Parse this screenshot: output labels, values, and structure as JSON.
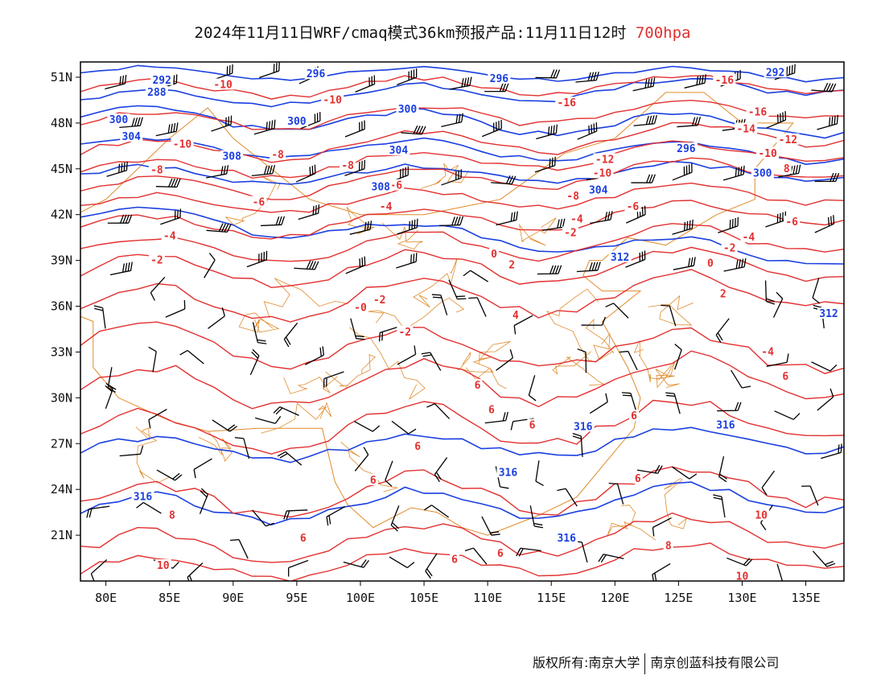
{
  "title": {
    "main": "2024年11月11日WRF/cmaq模式36km预报产品:11月11日12时",
    "level": "700hpa"
  },
  "map": {
    "lon_range": [
      78,
      138
    ],
    "lat_range": [
      18,
      52
    ],
    "x_ticks": [
      "80E",
      "85E",
      "90E",
      "95E",
      "100E",
      "105E",
      "110E",
      "115E",
      "120E",
      "125E",
      "130E",
      "135E"
    ],
    "x_tick_lons": [
      80,
      85,
      90,
      95,
      100,
      105,
      110,
      115,
      120,
      125,
      130,
      135
    ],
    "y_ticks": [
      "51N",
      "48N",
      "45N",
      "42N",
      "39N",
      "36N",
      "33N",
      "30N",
      "27N",
      "24N",
      "21N"
    ],
    "y_tick_lats": [
      51,
      48,
      45,
      42,
      39,
      36,
      33,
      30,
      27,
      24,
      21
    ],
    "colors": {
      "temperature": "#e23030",
      "geopotential": "#1a3fe0",
      "wind": "#000000",
      "boundary": "#e08a2a"
    },
    "temperature_labels": [
      {
        "text": "-10",
        "lon": 89.2,
        "lat": 50.5
      },
      {
        "text": "-10",
        "lon": 97.8,
        "lat": 49.5
      },
      {
        "text": "-10",
        "lon": 86.0,
        "lat": 46.6
      },
      {
        "text": "-8",
        "lon": 93.5,
        "lat": 45.9
      },
      {
        "text": "-8",
        "lon": 84.0,
        "lat": 44.9
      },
      {
        "text": "-8",
        "lon": 99.0,
        "lat": 45.2
      },
      {
        "text": "-6",
        "lon": 102.8,
        "lat": 43.9
      },
      {
        "text": "-6",
        "lon": 92.0,
        "lat": 42.8
      },
      {
        "text": "-4",
        "lon": 85.0,
        "lat": 40.6
      },
      {
        "text": "-4",
        "lon": 102.0,
        "lat": 42.5
      },
      {
        "text": "-2",
        "lon": 84.0,
        "lat": 39.0
      },
      {
        "text": "-2",
        "lon": 101.5,
        "lat": 36.4
      },
      {
        "text": "-2",
        "lon": 103.5,
        "lat": 34.3
      },
      {
        "text": "0",
        "lon": 110.5,
        "lat": 39.4
      },
      {
        "text": "-0",
        "lon": 100.0,
        "lat": 35.9
      },
      {
        "text": "2",
        "lon": 111.9,
        "lat": 38.7
      },
      {
        "text": "4",
        "lon": 112.2,
        "lat": 35.4
      },
      {
        "text": "6",
        "lon": 109.2,
        "lat": 30.8
      },
      {
        "text": "6",
        "lon": 110.3,
        "lat": 29.2
      },
      {
        "text": "6",
        "lon": 113.5,
        "lat": 28.2
      },
      {
        "text": "6",
        "lon": 104.5,
        "lat": 26.8
      },
      {
        "text": "6",
        "lon": 101.0,
        "lat": 24.6
      },
      {
        "text": "6",
        "lon": 95.5,
        "lat": 20.8
      },
      {
        "text": "6",
        "lon": 107.4,
        "lat": 19.4
      },
      {
        "text": "6",
        "lon": 121.5,
        "lat": 28.8
      },
      {
        "text": "6",
        "lon": 121.8,
        "lat": 24.7
      },
      {
        "text": "6",
        "lon": 111.0,
        "lat": 19.8
      },
      {
        "text": "8",
        "lon": 124.2,
        "lat": 20.3
      },
      {
        "text": "8",
        "lon": 85.2,
        "lat": 22.3
      },
      {
        "text": "10",
        "lon": 84.5,
        "lat": 19.0
      },
      {
        "text": "10",
        "lon": 131.5,
        "lat": 22.3
      },
      {
        "text": "10",
        "lon": 130.0,
        "lat": 18.3
      },
      {
        "text": "-16",
        "lon": 116.2,
        "lat": 49.3
      },
      {
        "text": "-16",
        "lon": 128.6,
        "lat": 50.8
      },
      {
        "text": "-16",
        "lon": 131.2,
        "lat": 48.7
      },
      {
        "text": "-14",
        "lon": 130.3,
        "lat": 47.6
      },
      {
        "text": "-12",
        "lon": 133.6,
        "lat": 46.9
      },
      {
        "text": "-10",
        "lon": 132.0,
        "lat": 46.0
      },
      {
        "text": "-12",
        "lon": 119.2,
        "lat": 45.6
      },
      {
        "text": "-10",
        "lon": 119.0,
        "lat": 44.7
      },
      {
        "text": "-8",
        "lon": 116.7,
        "lat": 43.2
      },
      {
        "text": "-6",
        "lon": 121.4,
        "lat": 42.5
      },
      {
        "text": "-4",
        "lon": 117.0,
        "lat": 41.7
      },
      {
        "text": "-2",
        "lon": 116.5,
        "lat": 40.8
      },
      {
        "text": "-6",
        "lon": 133.9,
        "lat": 41.5
      },
      {
        "text": "-4",
        "lon": 130.5,
        "lat": 40.5
      },
      {
        "text": "-2",
        "lon": 129.0,
        "lat": 39.8
      },
      {
        "text": "0",
        "lon": 127.5,
        "lat": 38.8
      },
      {
        "text": "2",
        "lon": 128.5,
        "lat": 36.8
      },
      {
        "text": "-4",
        "lon": 132.0,
        "lat": 33.0
      },
      {
        "text": "6",
        "lon": 133.4,
        "lat": 31.4
      },
      {
        "text": "8",
        "lon": 133.5,
        "lat": 45.0
      }
    ],
    "geopotential_labels": [
      {
        "text": "292",
        "lon": 84.4,
        "lat": 50.8
      },
      {
        "text": "288",
        "lon": 84.0,
        "lat": 50.0
      },
      {
        "text": "296",
        "lon": 96.5,
        "lat": 51.2
      },
      {
        "text": "296",
        "lon": 110.9,
        "lat": 50.9
      },
      {
        "text": "292",
        "lon": 132.6,
        "lat": 51.3
      },
      {
        "text": "300",
        "lon": 81.0,
        "lat": 48.2
      },
      {
        "text": "300",
        "lon": 103.7,
        "lat": 48.9
      },
      {
        "text": "300",
        "lon": 95.0,
        "lat": 48.1
      },
      {
        "text": "304",
        "lon": 82.0,
        "lat": 47.1
      },
      {
        "text": "304",
        "lon": 103.0,
        "lat": 46.2
      },
      {
        "text": "308",
        "lon": 89.9,
        "lat": 45.8
      },
      {
        "text": "308",
        "lon": 101.6,
        "lat": 43.8
      },
      {
        "text": "304",
        "lon": 118.7,
        "lat": 43.6
      },
      {
        "text": "296",
        "lon": 125.6,
        "lat": 46.3
      },
      {
        "text": "300",
        "lon": 131.6,
        "lat": 44.7
      },
      {
        "text": "312",
        "lon": 120.4,
        "lat": 39.2
      },
      {
        "text": "312",
        "lon": 136.8,
        "lat": 35.5
      },
      {
        "text": "316",
        "lon": 128.7,
        "lat": 28.2
      },
      {
        "text": "316",
        "lon": 117.5,
        "lat": 28.1
      },
      {
        "text": "316",
        "lon": 111.6,
        "lat": 25.1
      },
      {
        "text": "316",
        "lon": 116.2,
        "lat": 20.8
      },
      {
        "text": "316",
        "lon": 82.9,
        "lat": 23.5
      }
    ]
  },
  "copyright": {
    "left": "版权所有:南京大学",
    "right": "南京创蓝科技有限公司"
  }
}
